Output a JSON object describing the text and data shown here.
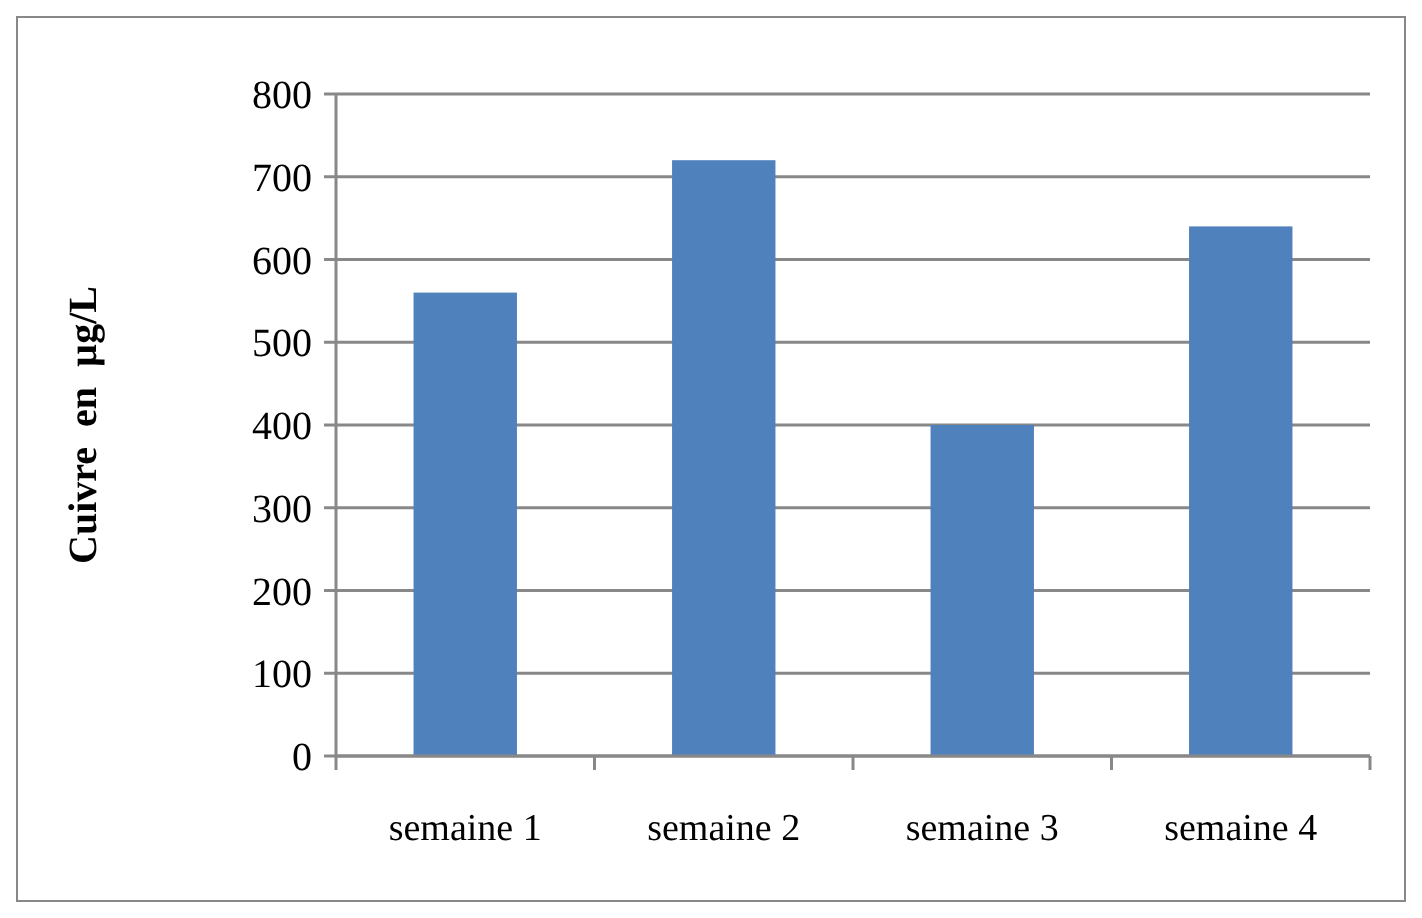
{
  "chart_data": {
    "type": "bar",
    "ylabel": "Cuivre  en  µg/L",
    "categories": [
      "semaine 1",
      "semaine 2",
      "semaine 3",
      "semaine 4"
    ],
    "values": [
      560,
      720,
      400,
      640
    ],
    "color": "#4f81bd",
    "ylim": [
      0,
      800
    ],
    "yticks": [
      0,
      100,
      200,
      300,
      400,
      500,
      600,
      700,
      800
    ],
    "grid": "y"
  }
}
